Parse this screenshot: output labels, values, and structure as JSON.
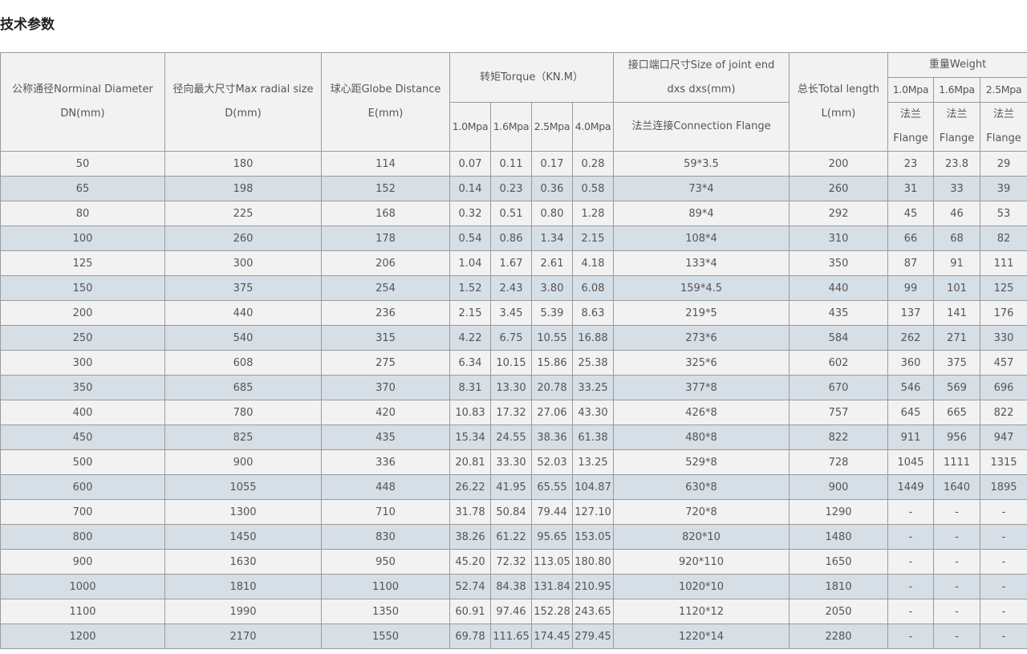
{
  "title": "技术参数",
  "table": {
    "header": {
      "dn": [
        "公称通径Norminal Diameter",
        "DN(mm)"
      ],
      "d": [
        "径向最大尺寸Max radial size",
        "D(mm)"
      ],
      "e": [
        "球心距Globe Distance",
        "E(mm)"
      ],
      "torque": "转矩Torque（KN.M）",
      "torque_pressures": [
        "1.0Mpa",
        "1.6Mpa",
        "2.5Mpa",
        "4.0Mpa"
      ],
      "joint": [
        "接口端口尺寸Size of joint end",
        "dxs dxs(mm)"
      ],
      "joint_sub": "法兰连接Connection Flange",
      "length": [
        "总长Total length",
        "L(mm)"
      ],
      "weight": "重量Weight",
      "weight_pressures": [
        "1.0Mpa",
        "1.6Mpa",
        "2.5Mpa"
      ],
      "weight_sub": [
        [
          "法兰",
          "Flange"
        ],
        [
          "法兰",
          "Flange"
        ],
        [
          "法兰",
          "Flange"
        ]
      ]
    },
    "rows": [
      [
        "50",
        "180",
        "114",
        "0.07",
        "0.11",
        "0.17",
        "0.28",
        "59*3.5",
        "200",
        "23",
        "23.8",
        "29"
      ],
      [
        "65",
        "198",
        "152",
        "0.14",
        "0.23",
        "0.36",
        "0.58",
        "73*4",
        "260",
        "31",
        "33",
        "39"
      ],
      [
        "80",
        "225",
        "168",
        "0.32",
        "0.51",
        "0.80",
        "1.28",
        "89*4",
        "292",
        "45",
        "46",
        "53"
      ],
      [
        "100",
        "260",
        "178",
        "0.54",
        "0.86",
        "1.34",
        "2.15",
        "108*4",
        "310",
        "66",
        "68",
        "82"
      ],
      [
        "125",
        "300",
        "206",
        "1.04",
        "1.67",
        "2.61",
        "4.18",
        "133*4",
        "350",
        "87",
        "91",
        "111"
      ],
      [
        "150",
        "375",
        "254",
        "1.52",
        "2.43",
        "3.80",
        "6.08",
        "159*4.5",
        "440",
        "99",
        "101",
        "125"
      ],
      [
        "200",
        "440",
        "236",
        "2.15",
        "3.45",
        "5.39",
        "8.63",
        "219*5",
        "435",
        "137",
        "141",
        "176"
      ],
      [
        "250",
        "540",
        "315",
        "4.22",
        "6.75",
        "10.55",
        "16.88",
        "273*6",
        "584",
        "262",
        "271",
        "330"
      ],
      [
        "300",
        "608",
        "275",
        "6.34",
        "10.15",
        "15.86",
        "25.38",
        "325*6",
        "602",
        "360",
        "375",
        "457"
      ],
      [
        "350",
        "685",
        "370",
        "8.31",
        "13.30",
        "20.78",
        "33.25",
        "377*8",
        "670",
        "546",
        "569",
        "696"
      ],
      [
        "400",
        "780",
        "420",
        "10.83",
        "17.32",
        "27.06",
        "43.30",
        "426*8",
        "757",
        "645",
        "665",
        "822"
      ],
      [
        "450",
        "825",
        "435",
        "15.34",
        "24.55",
        "38.36",
        "61.38",
        "480*8",
        "822",
        "911",
        "956",
        "947"
      ],
      [
        "500",
        "900",
        "336",
        "20.81",
        "33.30",
        "52.03",
        "13.25",
        "529*8",
        "728",
        "1045",
        "1111",
        "1315"
      ],
      [
        "600",
        "1055",
        "448",
        "26.22",
        "41.95",
        "65.55",
        "104.87",
        "630*8",
        "900",
        "1449",
        "1640",
        "1895"
      ],
      [
        "700",
        "1300",
        "710",
        "31.78",
        "50.84",
        "79.44",
        "127.10",
        "720*8",
        "1290",
        "-",
        "-",
        "-"
      ],
      [
        "800",
        "1450",
        "830",
        "38.26",
        "61.22",
        "95.65",
        "153.05",
        "820*10",
        "1480",
        "-",
        "-",
        "-"
      ],
      [
        "900",
        "1630",
        "950",
        "45.20",
        "72.32",
        "113.05",
        "180.80",
        "920*110",
        "1650",
        "-",
        "-",
        "-"
      ],
      [
        "1000",
        "1810",
        "1100",
        "52.74",
        "84.38",
        "131.84",
        "210.95",
        "1020*10",
        "1810",
        "-",
        "-",
        "-"
      ],
      [
        "1100",
        "1990",
        "1350",
        "60.91",
        "97.46",
        "152.28",
        "243.65",
        "1120*12",
        "2050",
        "-",
        "-",
        "-"
      ],
      [
        "1200",
        "2170",
        "1550",
        "69.78",
        "111.65",
        "174.45",
        "279.45",
        "1220*14",
        "2280",
        "-",
        "-",
        "-"
      ]
    ]
  }
}
